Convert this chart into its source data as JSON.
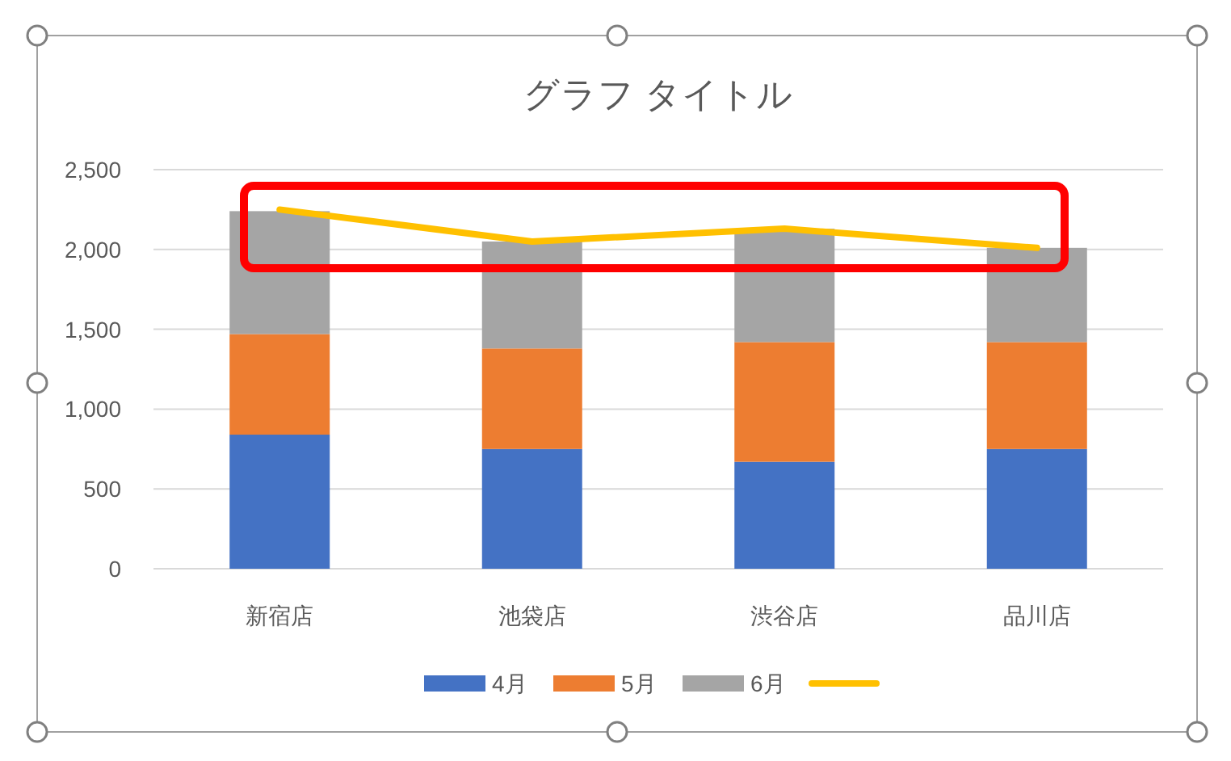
{
  "chart_data": {
    "type": "bar",
    "title": "グラフ タイトル",
    "stacked": true,
    "grid": "y",
    "legend": "bottom",
    "categories": [
      "新宿店",
      "池袋店",
      "渋谷店",
      "品川店"
    ],
    "ylim": [
      0,
      2500
    ],
    "yticks": [
      0,
      500,
      {
        "value": 1000,
        "label": "1,000"
      },
      {
        "value": 1500,
        "label": "1,500"
      },
      {
        "value": 2000,
        "label": "2,000"
      },
      {
        "value": 2500,
        "label": "2,500"
      }
    ],
    "series": [
      {
        "name": "4月",
        "color": "#4472c4",
        "values": [
          840,
          750,
          670,
          750
        ]
      },
      {
        "name": "5月",
        "color": "#ed7d31",
        "values": [
          630,
          630,
          750,
          670
        ]
      },
      {
        "name": "6月",
        "color": "#a5a5a5",
        "values": [
          770,
          670,
          710,
          590
        ]
      },
      {
        "type": "line",
        "color": "#ffc000",
        "values": [
          2250,
          2050,
          2130,
          2010
        ]
      }
    ]
  }
}
